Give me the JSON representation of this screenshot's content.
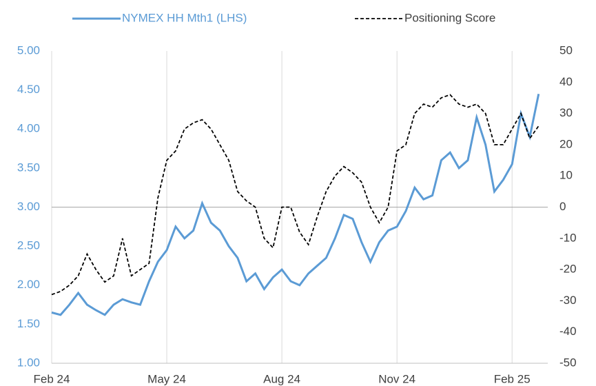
{
  "chart_data": {
    "type": "line",
    "categories": [
      "Feb 24",
      null,
      null,
      null,
      null,
      null,
      null,
      null,
      null,
      null,
      null,
      null,
      null,
      "May 24",
      null,
      null,
      null,
      null,
      null,
      null,
      null,
      null,
      null,
      null,
      null,
      null,
      "Aug 24",
      null,
      null,
      null,
      null,
      null,
      null,
      null,
      null,
      null,
      null,
      null,
      null,
      "Nov 24",
      null,
      null,
      null,
      null,
      null,
      null,
      null,
      null,
      null,
      null,
      null,
      null,
      "Feb 25",
      null,
      null,
      null
    ],
    "series": [
      {
        "name": "NYMEX HH Mth1 (LHS)",
        "color": "#5b9bd5",
        "axis": "y",
        "values": [
          1.65,
          1.62,
          1.75,
          1.9,
          1.75,
          1.68,
          1.62,
          1.75,
          1.82,
          1.78,
          1.75,
          2.05,
          2.3,
          2.45,
          2.75,
          2.6,
          2.7,
          3.05,
          2.8,
          2.7,
          2.5,
          2.35,
          2.05,
          2.15,
          1.95,
          2.1,
          2.2,
          2.05,
          2.0,
          2.15,
          2.25,
          2.35,
          2.6,
          2.9,
          2.85,
          2.55,
          2.3,
          2.55,
          2.7,
          2.75,
          2.95,
          3.25,
          3.1,
          3.15,
          3.6,
          3.7,
          3.5,
          3.6,
          4.15,
          3.8,
          3.2,
          3.35,
          3.55,
          4.2,
          3.9,
          4.45
        ]
      },
      {
        "name": "Positioning Score",
        "color": "#000000",
        "axis": "y2",
        "dashed": true,
        "values": [
          -28,
          -27,
          -25,
          -22,
          -15,
          -20,
          -24,
          -22,
          -10,
          -22,
          -20,
          -18,
          3,
          15,
          18,
          25,
          27,
          28,
          25,
          20,
          15,
          5,
          2,
          0,
          -10,
          -13,
          0,
          0,
          -8,
          -12,
          -3,
          5,
          10,
          13,
          11,
          8,
          0,
          -5,
          0,
          18,
          20,
          30,
          33,
          32,
          35,
          36,
          33,
          32,
          33,
          30,
          20,
          20,
          25,
          30,
          22,
          26
        ]
      }
    ],
    "ylim": [
      1,
      5
    ],
    "yticks": [
      {
        "value": 1,
        "label": "1.00"
      },
      {
        "value": 1.5,
        "label": "1.50"
      },
      {
        "value": 2,
        "label": "2.00"
      },
      {
        "value": 2.5,
        "label": "2.50"
      },
      {
        "value": 3,
        "label": "3.00"
      },
      {
        "value": 3.5,
        "label": "3.50"
      },
      {
        "value": 4,
        "label": "4.00"
      },
      {
        "value": 4.5,
        "label": "4.50"
      },
      {
        "value": 5,
        "label": "5.00"
      }
    ],
    "y2lim": [
      -50,
      50
    ],
    "y2ticks": [
      -50,
      -40,
      -30,
      -20,
      -10,
      0,
      10,
      20,
      30,
      40,
      50
    ],
    "ytick_color": "#5b9bd5",
    "grid": true
  }
}
